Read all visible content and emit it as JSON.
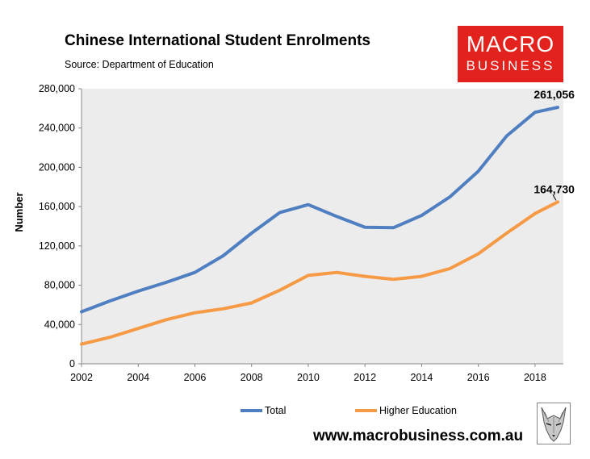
{
  "header": {
    "title": "Chinese International Student Enrolments",
    "source": "Source: Department of Education"
  },
  "logo": {
    "line1": "MACRO",
    "line2": "BUSINESS"
  },
  "footer": {
    "website": "www.macrobusiness.com.au"
  },
  "colors": {
    "total": "#4f7fc0",
    "higher": "#f79a46",
    "plot_bg": "#ececec",
    "logo_bg": "#e3221d"
  },
  "chart_data": {
    "type": "line",
    "ylabel": "Number",
    "ylim": [
      0,
      280000
    ],
    "xlim": [
      2002,
      2019
    ],
    "yticks": [
      0,
      40000,
      80000,
      120000,
      160000,
      200000,
      240000,
      280000
    ],
    "ytick_labels": [
      "0",
      "40,000",
      "80,000",
      "120,000",
      "160,000",
      "200,000",
      "240,000",
      "280,000"
    ],
    "xticks": [
      2002,
      2004,
      2006,
      2008,
      2010,
      2012,
      2014,
      2016,
      2018
    ],
    "xtick_labels": [
      "2002",
      "2004",
      "2006",
      "2008",
      "2010",
      "2012",
      "2014",
      "2016",
      "2018"
    ],
    "grid": false,
    "legend_position": "bottom",
    "x": [
      2002,
      2003,
      2004,
      2005,
      2006,
      2007,
      2008,
      2009,
      2010,
      2011,
      2012,
      2013,
      2014,
      2015,
      2016,
      2017,
      2018,
      2018.8
    ],
    "series": [
      {
        "name": "Total",
        "color": "#4f7fc0",
        "values": [
          53000,
          64000,
          74000,
          83000,
          93000,
          110000,
          133000,
          154000,
          162000,
          150000,
          139000,
          138500,
          151000,
          170000,
          196000,
          232000,
          256000,
          261056
        ],
        "end_label": "261,056"
      },
      {
        "name": "Higher Education",
        "color": "#f79a46",
        "values": [
          20000,
          27000,
          36000,
          45000,
          52000,
          56000,
          62000,
          75000,
          90000,
          93000,
          89000,
          86000,
          89000,
          97000,
          112000,
          133000,
          153000,
          164730
        ],
        "end_label": "164,730"
      }
    ]
  }
}
